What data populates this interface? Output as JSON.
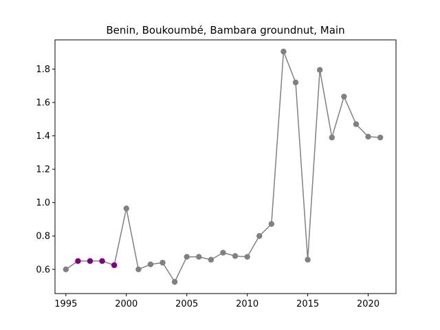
{
  "chart_data": {
    "type": "line",
    "title": "Benin, Boukoumbé, Bambara groundnut, Main",
    "xlabel": "",
    "ylabel": "",
    "xlim": [
      1994.1,
      2022.3
    ],
    "ylim": [
      0.455,
      1.975
    ],
    "xticks": [
      1995,
      2000,
      2005,
      2010,
      2015,
      2020
    ],
    "yticks": [
      0.6,
      0.8,
      1.0,
      1.2,
      1.4,
      1.6,
      1.8
    ],
    "ytick_labels": [
      "0.6",
      "0.8",
      "1.0",
      "1.2",
      "1.4",
      "1.6",
      "1.8"
    ],
    "grid": false,
    "legend": "none",
    "line_color": "#808080",
    "series": [
      {
        "x": [
          1995,
          1996,
          1997,
          1998,
          1999,
          2000,
          2001,
          2002,
          2003,
          2004,
          2005,
          2006,
          2007,
          2008,
          2009,
          2010,
          2011,
          2012,
          2013,
          2014,
          2015,
          2016,
          2017,
          2018,
          2019,
          2020,
          2021
        ],
        "y": [
          0.6,
          0.65,
          0.65,
          0.65,
          0.625,
          0.965,
          0.6,
          0.63,
          0.64,
          0.525,
          0.675,
          0.675,
          0.658,
          0.7,
          0.68,
          0.675,
          0.8,
          0.872,
          1.905,
          1.72,
          0.658,
          1.795,
          1.39,
          1.635,
          1.47,
          1.395,
          1.39
        ],
        "point_colors": [
          "#808080",
          "#800080",
          "#800080",
          "#800080",
          "#800080",
          "#808080",
          "#808080",
          "#808080",
          "#808080",
          "#808080",
          "#808080",
          "#808080",
          "#808080",
          "#808080",
          "#808080",
          "#808080",
          "#808080",
          "#808080",
          "#808080",
          "#808080",
          "#808080",
          "#808080",
          "#808080",
          "#808080",
          "#808080",
          "#808080",
          "#808080"
        ]
      }
    ]
  }
}
